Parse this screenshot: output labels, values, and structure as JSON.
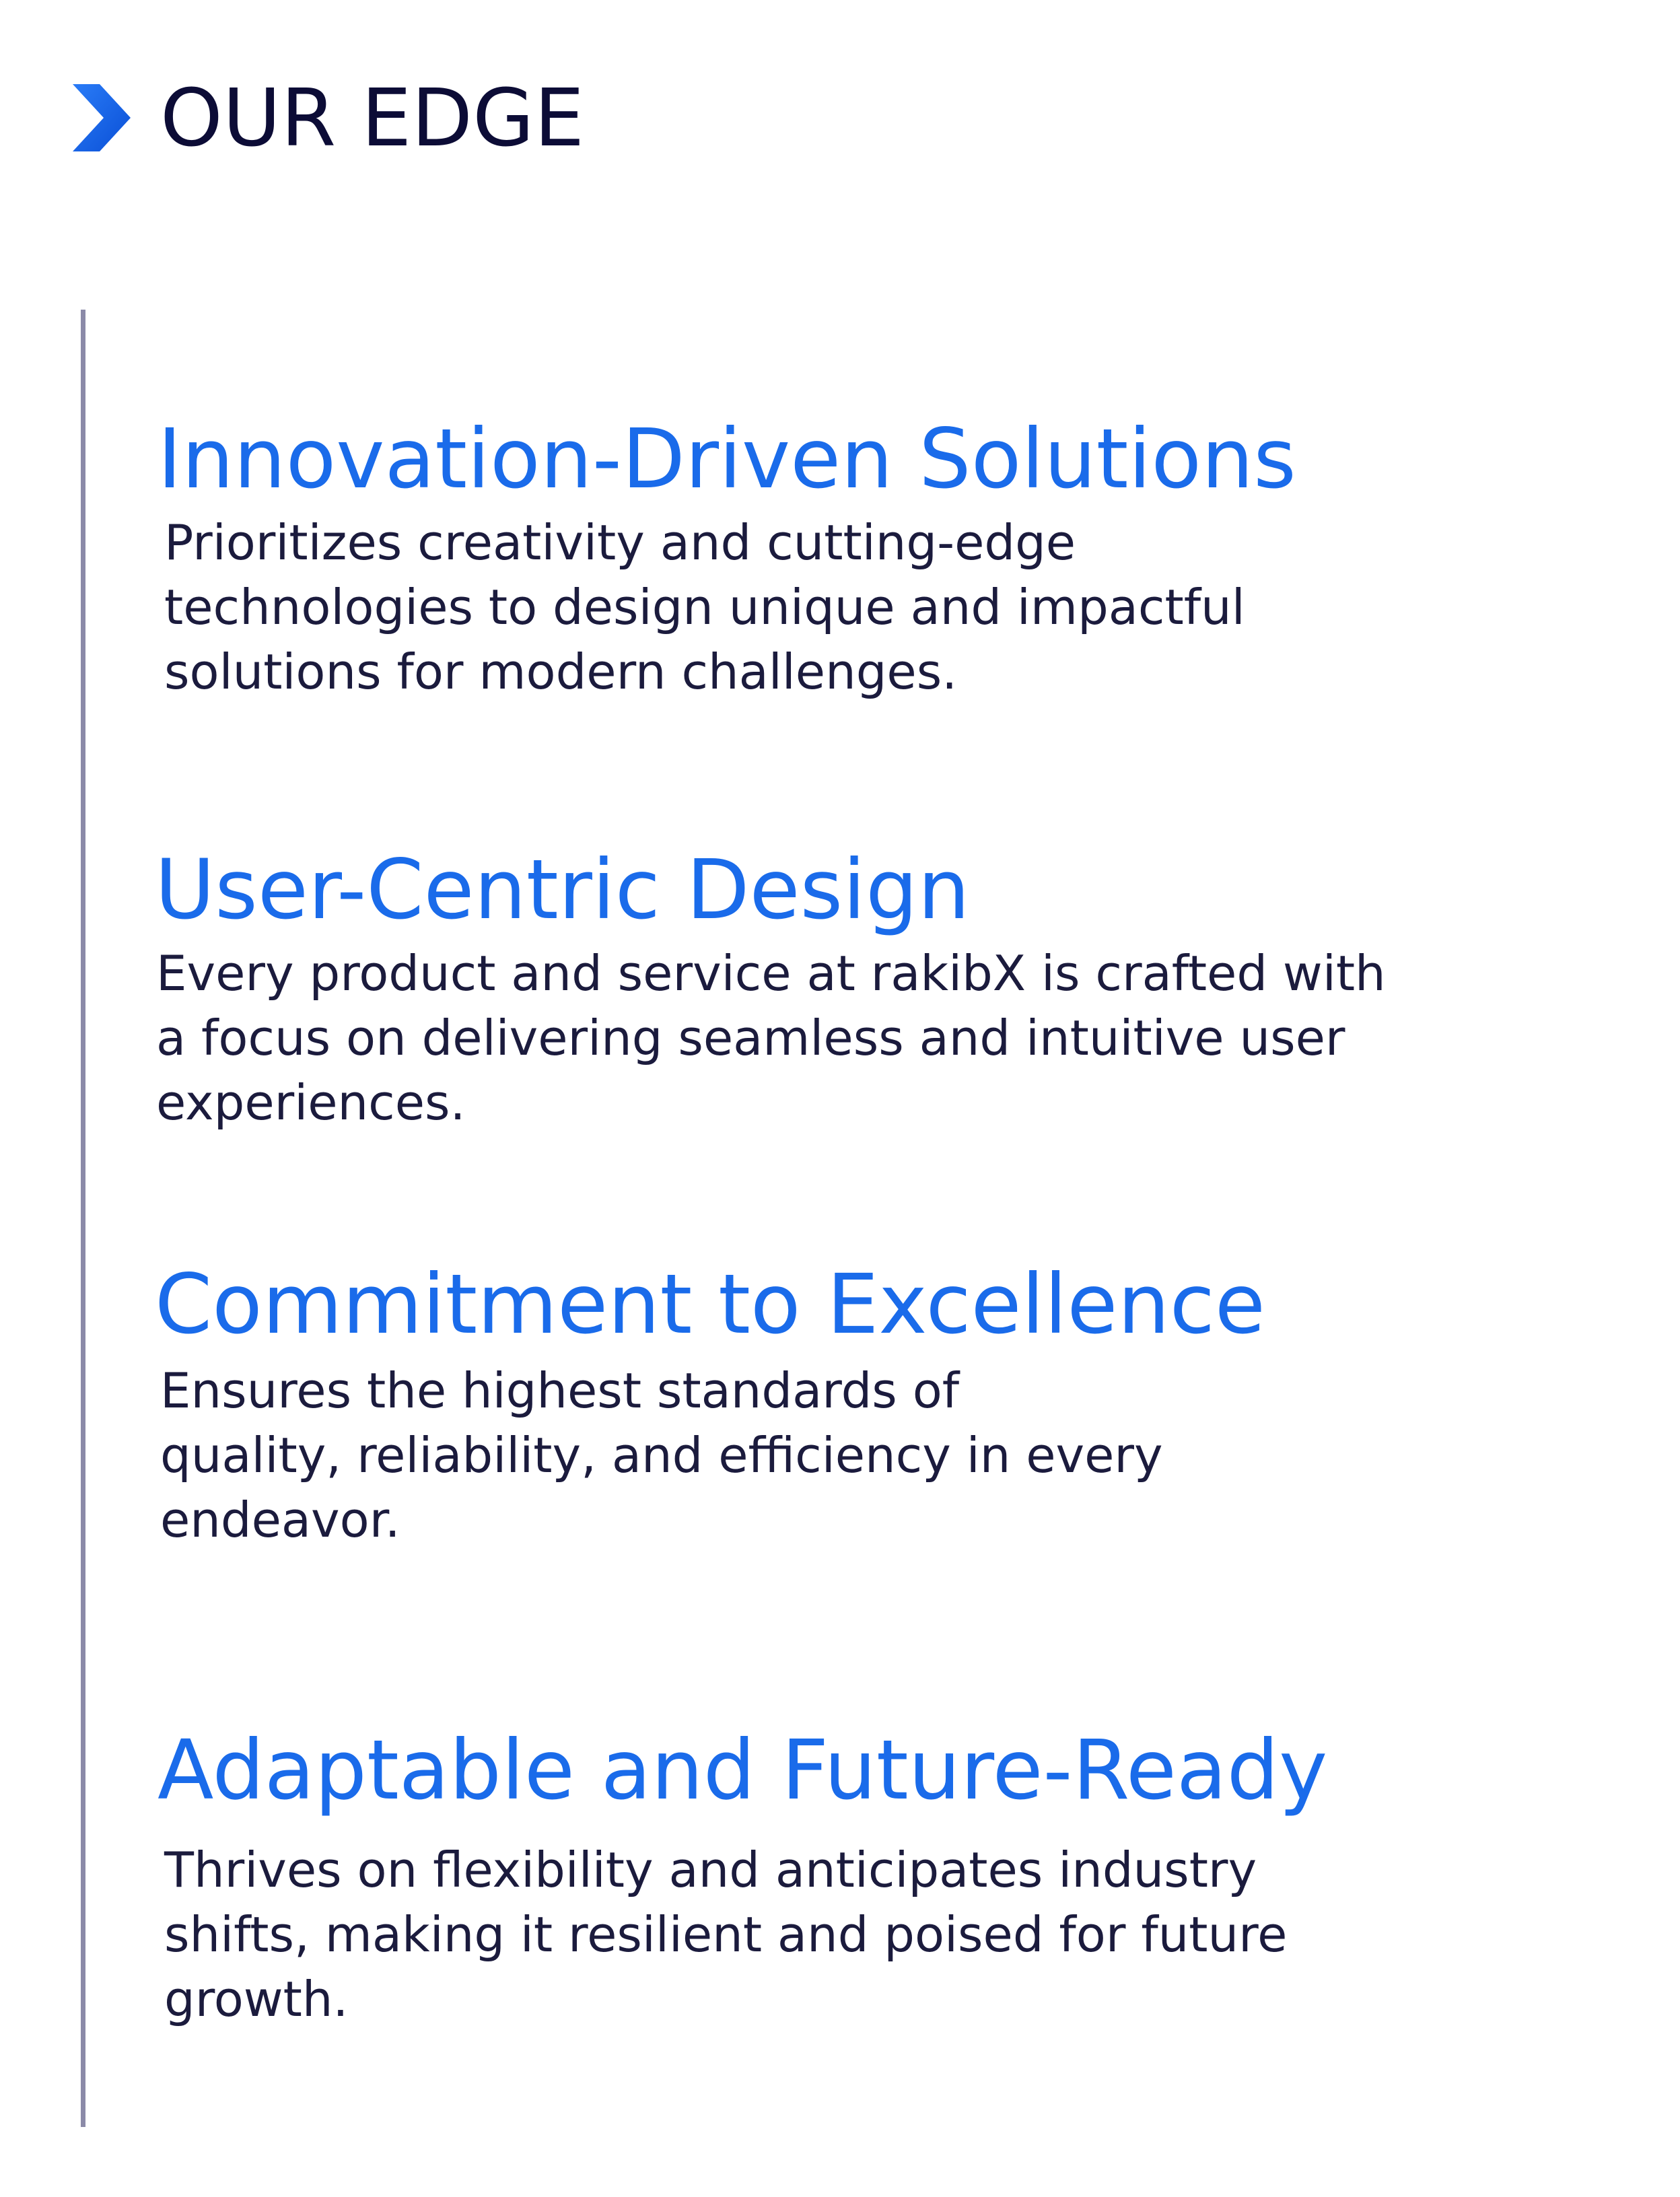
{
  "page_title": "OUR EDGE",
  "colors": {
    "accent": "#1466f0",
    "heading": "#1a6bea",
    "title": "#0c0c36",
    "body_text": "#1b1b3d",
    "divider": "#8b8aa8"
  },
  "icons": {
    "header": "chevron-right-icon"
  },
  "sections": [
    {
      "heading": "Innovation-Driven Solutions",
      "lines": [
        "Prioritizes creativity and cutting-edge",
        "technologies to design unique and impactful",
        "solutions for modern challenges."
      ]
    },
    {
      "heading": "User-Centric Design",
      "lines": [
        "Every product and service at rakibX is crafted with",
        "a focus on delivering seamless and intuitive user",
        "experiences."
      ]
    },
    {
      "heading": "Commitment to Excellence",
      "lines": [
        "Ensures the highest standards of",
        "quality, reliability, and efficiency in every",
        "endeavor."
      ]
    },
    {
      "heading": "Adaptable and Future-Ready",
      "lines": [
        "Thrives on flexibility and anticipates industry",
        "shifts, making it resilient and poised for future",
        "growth."
      ]
    }
  ]
}
